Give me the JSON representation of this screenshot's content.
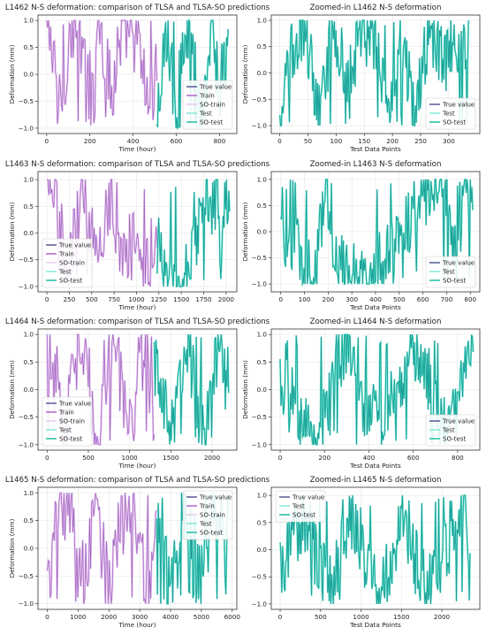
{
  "colors": {
    "true_value": "#4b4e8f",
    "train": "#b05cc8",
    "so_train": "#e8c8f0",
    "test": "#7ee8d6",
    "so_test": "#13b99e"
  },
  "chart_data": [
    {
      "type": "line",
      "title": "L1462 N-S deformation: comparison of TLSA and TLSA-SO predictions",
      "xlabel": "Time (hour)",
      "ylabel": "Deformation (mm)",
      "xlim": [
        -40,
        880
      ],
      "ylim": [
        -1.1,
        1.1
      ],
      "xticks": [
        0,
        200,
        400,
        600,
        800
      ],
      "yticks": [
        -1.0,
        -0.5,
        0.0,
        0.5,
        1.0
      ],
      "ytick_labels": [
        "−1.0",
        "−0.5",
        "0.0",
        "0.5",
        "1.0"
      ],
      "legend": {
        "position": "lower-right",
        "entries": [
          "True value",
          "Train",
          "SO-train",
          "Test",
          "SO-test"
        ]
      },
      "split_x": 510,
      "series": [
        {
          "name": "Train",
          "x_range": [
            0,
            510
          ],
          "keyframes": [
            [
              0,
              0.95
            ],
            [
              60,
              -0.6
            ],
            [
              120,
              0.9
            ],
            [
              180,
              0.1
            ],
            [
              240,
              0.95
            ],
            [
              300,
              -0.3
            ],
            [
              360,
              0.85
            ],
            [
              420,
              0.6
            ],
            [
              480,
              -0.7
            ],
            [
              510,
              0.2
            ]
          ]
        },
        {
          "name": "SO-test",
          "x_range": [
            510,
            840
          ],
          "keyframes": [
            [
              510,
              -0.9
            ],
            [
              560,
              0.9
            ],
            [
              600,
              -0.8
            ],
            [
              640,
              0.95
            ],
            [
              680,
              0.3
            ],
            [
              720,
              -0.9
            ],
            [
              760,
              0.9
            ],
            [
              800,
              -0.2
            ],
            [
              840,
              0.4
            ]
          ]
        }
      ]
    },
    {
      "type": "line",
      "title": "Zoomed-in L1462 N-S deformation",
      "xlabel": "Test Data Points",
      "ylabel": "Deformation (mm)",
      "xlim": [
        -15,
        355
      ],
      "ylim": [
        -1.15,
        1.1
      ],
      "xticks": [
        0,
        50,
        100,
        150,
        200,
        250,
        300
      ],
      "yticks": [
        -1.0,
        -0.5,
        0.0,
        0.5,
        1.0
      ],
      "ytick_labels": [
        "−1.0",
        "−0.5",
        "0.0",
        "0.5",
        "1.0"
      ],
      "legend": {
        "position": "lower-right",
        "entries": [
          "True value",
          "Test",
          "SO-test"
        ]
      },
      "series": [
        {
          "name": "SO-test",
          "x_range": [
            0,
            335
          ],
          "keyframes": [
            [
              0,
              -1.0
            ],
            [
              20,
              0.3
            ],
            [
              45,
              0.95
            ],
            [
              70,
              -0.8
            ],
            [
              95,
              0.9
            ],
            [
              120,
              -0.2
            ],
            [
              145,
              0.8
            ],
            [
              170,
              0.6
            ],
            [
              195,
              -0.6
            ],
            [
              215,
              0.7
            ],
            [
              240,
              -0.9
            ],
            [
              265,
              0.9
            ],
            [
              290,
              0.2
            ],
            [
              315,
              0.6
            ],
            [
              335,
              0.4
            ]
          ]
        }
      ]
    },
    {
      "type": "line",
      "title": "L1463 N-S deformation: comparison of TLSA and TLSA-SO predictions",
      "xlabel": "Time (hour)",
      "ylabel": "Deformation (mm)",
      "xlim": [
        -100,
        2120
      ],
      "ylim": [
        -1.1,
        1.15
      ],
      "xticks": [
        0,
        250,
        500,
        750,
        1000,
        1250,
        1500,
        1750,
        2000
      ],
      "yticks": [
        -1.0,
        -0.5,
        0.0,
        0.5,
        1.0
      ],
      "ytick_labels": [
        "−1.0",
        "−0.5",
        "0.0",
        "0.5",
        "1.0"
      ],
      "legend": {
        "position": "lower-left",
        "entries": [
          "True value",
          "Train",
          "SO-train",
          "Test",
          "SO-test"
        ]
      },
      "split_x": 1230,
      "series": [
        {
          "name": "Train",
          "x_range": [
            0,
            1230
          ],
          "keyframes": [
            [
              0,
              0.8
            ],
            [
              150,
              0.3
            ],
            [
              250,
              -0.5
            ],
            [
              400,
              0.9
            ],
            [
              550,
              -0.3
            ],
            [
              700,
              0.6
            ],
            [
              850,
              -0.5
            ],
            [
              1000,
              0.2
            ],
            [
              1100,
              -0.7
            ],
            [
              1230,
              0.0
            ]
          ]
        },
        {
          "name": "SO-test",
          "x_range": [
            1230,
            2040
          ],
          "keyframes": [
            [
              1230,
              0.1
            ],
            [
              1300,
              -0.6
            ],
            [
              1400,
              -0.85
            ],
            [
              1500,
              -0.9
            ],
            [
              1600,
              -0.6
            ],
            [
              1700,
              0.1
            ],
            [
              1800,
              0.8
            ],
            [
              1850,
              0.3
            ],
            [
              1900,
              0.9
            ],
            [
              1950,
              -0.6
            ],
            [
              2000,
              0.8
            ],
            [
              2040,
              0.5
            ]
          ]
        }
      ]
    },
    {
      "type": "line",
      "title": "Zoomed-in L1463 N-S deformation",
      "xlabel": "Test Data Points",
      "ylabel": "Deformation (mm)",
      "xlim": [
        -40,
        840
      ],
      "ylim": [
        -1.15,
        1.15
      ],
      "xticks": [
        0,
        100,
        200,
        300,
        400,
        500,
        600,
        700,
        800
      ],
      "yticks": [
        -1.0,
        -0.5,
        0.0,
        0.5,
        1.0
      ],
      "ytick_labels": [
        "−1.0",
        "−0.5",
        "0.0",
        "0.5",
        "1.0"
      ],
      "legend": {
        "position": "lower-right",
        "entries": [
          "True value",
          "Test",
          "SO-test"
        ]
      },
      "series": [
        {
          "name": "SO-test",
          "x_range": [
            0,
            810
          ],
          "keyframes": [
            [
              0,
              0.0
            ],
            [
              50,
              -0.3
            ],
            [
              100,
              -0.5
            ],
            [
              150,
              -0.7
            ],
            [
              190,
              0.9
            ],
            [
              220,
              -0.6
            ],
            [
              260,
              -0.7
            ],
            [
              300,
              -0.85
            ],
            [
              350,
              -0.85
            ],
            [
              400,
              -0.7
            ],
            [
              450,
              -0.5
            ],
            [
              500,
              -0.2
            ],
            [
              550,
              0.3
            ],
            [
              600,
              0.6
            ],
            [
              650,
              0.95
            ],
            [
              700,
              0.9
            ],
            [
              740,
              -0.6
            ],
            [
              770,
              0.7
            ],
            [
              810,
              0.8
            ]
          ]
        }
      ]
    },
    {
      "type": "line",
      "title": "L1464 N-S deformation: comparison of TLSA and TLSA-SO predictions",
      "xlabel": "Time (hour)",
      "ylabel": "Deformation (mm)",
      "xlim": [
        -110,
        2300
      ],
      "ylim": [
        -1.1,
        1.1
      ],
      "xticks": [
        0,
        500,
        1000,
        1500,
        2000
      ],
      "yticks": [
        -1.0,
        -0.5,
        0.0,
        0.5,
        1.0
      ],
      "ytick_labels": [
        "−1.0",
        "−0.5",
        "0.0",
        "0.5",
        "1.0"
      ],
      "legend": {
        "position": "lower-left",
        "entries": [
          "True value",
          "Train",
          "SO-train",
          "Test",
          "SO-test"
        ]
      },
      "split_x": 1300,
      "series": [
        {
          "name": "Train",
          "x_range": [
            0,
            1300
          ],
          "keyframes": [
            [
              0,
              0.9
            ],
            [
              200,
              -0.8
            ],
            [
              400,
              0.95
            ],
            [
              600,
              -0.9
            ],
            [
              800,
              0.8
            ],
            [
              1000,
              -0.7
            ],
            [
              1200,
              0.9
            ],
            [
              1300,
              -0.9
            ]
          ]
        },
        {
          "name": "SO-test",
          "x_range": [
            1300,
            2200
          ],
          "keyframes": [
            [
              1300,
              0.5
            ],
            [
              1500,
              -0.9
            ],
            [
              1700,
              0.95
            ],
            [
              1900,
              -0.9
            ],
            [
              2100,
              0.9
            ],
            [
              2200,
              -0.2
            ]
          ]
        }
      ]
    },
    {
      "type": "line",
      "title": "Zoomed-in L1464 N-S deformation",
      "xlabel": "Test Data Points",
      "ylabel": "Deformation (mm)",
      "xlim": [
        -40,
        900
      ],
      "ylim": [
        -1.1,
        1.1
      ],
      "xticks": [
        0,
        200,
        400,
        600,
        800
      ],
      "yticks": [
        -1.0,
        -0.5,
        0.0,
        0.5,
        1.0
      ],
      "ytick_labels": [
        "−1.0",
        "−0.5",
        "0.0",
        "0.5",
        "1.0"
      ],
      "legend": {
        "position": "lower-right",
        "entries": [
          "True value",
          "Test",
          "SO-test"
        ]
      },
      "series": [
        {
          "name": "SO-test",
          "x_range": [
            0,
            870
          ],
          "keyframes": [
            [
              0,
              0.2
            ],
            [
              150,
              -0.9
            ],
            [
              300,
              0.95
            ],
            [
              450,
              -0.8
            ],
            [
              600,
              0.9
            ],
            [
              750,
              -0.9
            ],
            [
              870,
              0.6
            ]
          ]
        }
      ]
    },
    {
      "type": "line",
      "title": "L1465 N-S deformation: comparison of TLSA and TLSA-SO predictions",
      "xlabel": "Time (hour)",
      "ylabel": "Deformation (mm)",
      "xlim": [
        -300,
        6150
      ],
      "ylim": [
        -1.1,
        1.1
      ],
      "xticks": [
        0,
        1000,
        2000,
        3000,
        4000,
        5000,
        6000
      ],
      "yticks": [
        -1.0,
        -0.5,
        0.0,
        0.5,
        1.0
      ],
      "ytick_labels": [
        "−1.0",
        "−0.5",
        "0.0",
        "0.5",
        "1.0"
      ],
      "legend": {
        "position": "upper-right",
        "entries": [
          "True value",
          "Train",
          "SO-train",
          "Test",
          "SO-test"
        ]
      },
      "split_x": 3550,
      "series": [
        {
          "name": "Train",
          "x_range": [
            0,
            3550
          ],
          "keyframes": [
            [
              0,
              -0.8
            ],
            [
              400,
              0.6
            ],
            [
              800,
              0.95
            ],
            [
              1200,
              -0.5
            ],
            [
              1600,
              0.7
            ],
            [
              2000,
              -0.8
            ],
            [
              2400,
              0.3
            ],
            [
              2800,
              0.9
            ],
            [
              3200,
              -0.7
            ],
            [
              3550,
              0.2
            ]
          ]
        },
        {
          "name": "SO-test",
          "x_range": [
            3550,
            5900
          ],
          "keyframes": [
            [
              3550,
              0.8
            ],
            [
              4000,
              -0.9
            ],
            [
              4500,
              0.9
            ],
            [
              5000,
              -0.6
            ],
            [
              5400,
              0.7
            ],
            [
              5900,
              -0.8
            ]
          ]
        }
      ]
    },
    {
      "type": "line",
      "title": "Zoomed-in L1465 N-S deformation",
      "xlabel": "Test Data Points",
      "ylabel": "",
      "xlim": [
        -110,
        2470
      ],
      "ylim": [
        -1.1,
        1.15
      ],
      "xticks": [
        0,
        500,
        1000,
        1500,
        2000
      ],
      "yticks": [
        -1.0,
        -0.5,
        0.0,
        0.5,
        1.0
      ],
      "ytick_labels": [
        "−1.0",
        "−0.5",
        "0.0",
        "0.5",
        "1.0"
      ],
      "legend": {
        "position": "upper-left",
        "entries": [
          "True value",
          "Test",
          "SO-test"
        ]
      },
      "series": [
        {
          "name": "SO-test",
          "x_range": [
            0,
            2350
          ],
          "keyframes": [
            [
              0,
              -0.3
            ],
            [
              300,
              0.6
            ],
            [
              600,
              -0.8
            ],
            [
              900,
              0.7
            ],
            [
              1200,
              -0.9
            ],
            [
              1500,
              0.5
            ],
            [
              1800,
              -0.7
            ],
            [
              2100,
              0.2
            ],
            [
              2300,
              1.05
            ],
            [
              2350,
              -0.5
            ]
          ]
        }
      ]
    }
  ]
}
